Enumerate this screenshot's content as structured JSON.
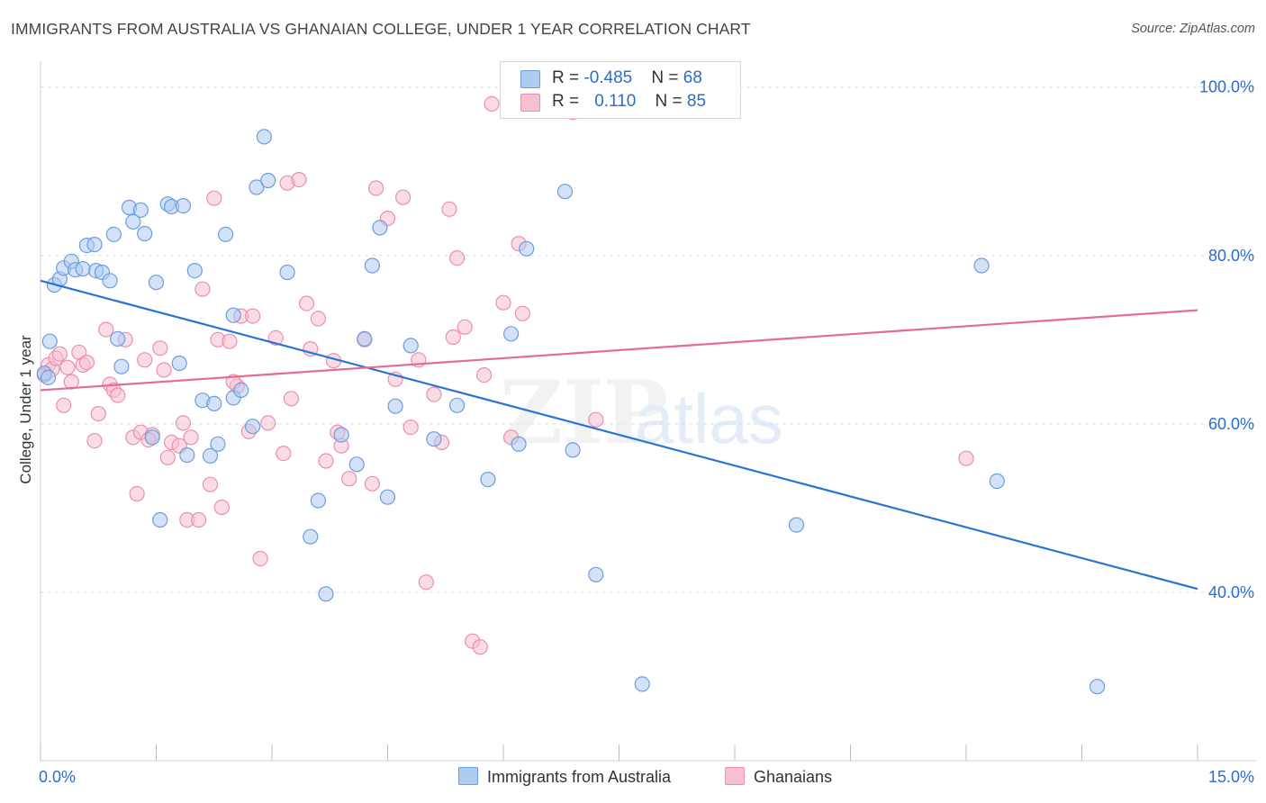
{
  "title": "IMMIGRANTS FROM AUSTRALIA VS GHANAIAN COLLEGE, UNDER 1 YEAR CORRELATION CHART",
  "source": "Source: ZipAtlas.com",
  "watermark": {
    "zip": "ZIP",
    "atlas": "atlas"
  },
  "legend": {
    "series1": {
      "r_label": "R = ",
      "r_value": "-0.485",
      "n_label": "N = ",
      "n_value": "68"
    },
    "series2": {
      "r_label": "R = ",
      "r_value": "0.110",
      "n_label": "N = ",
      "n_value": "85"
    }
  },
  "bottom_legend": {
    "series1": "Immigrants from Australia",
    "series2": "Ghanaians"
  },
  "colors": {
    "blue_fill": "#aecbf0",
    "blue_stroke": "#6d9de0",
    "blue_line": "#2b74d1",
    "pink_fill": "#f6c0d2",
    "pink_stroke": "#ec8fae",
    "pink_line": "#e36b96",
    "axis_label": "#2a6dd0",
    "grid": "#dddddd"
  },
  "chart_data": {
    "type": "scatter",
    "title": "IMMIGRANTS FROM AUSTRALIA VS GHANAIAN COLLEGE, UNDER 1 YEAR CORRELATION CHART",
    "xlabel": "",
    "ylabel": "College, Under 1 year",
    "xlim": [
      0,
      15
    ],
    "ylim": [
      20,
      102
    ],
    "x_tick_labels": [
      "0.0%",
      "15.0%"
    ],
    "y_ticks": [
      40,
      60,
      80,
      100
    ],
    "y_tick_labels": [
      "40.0%",
      "60.0%",
      "80.0%",
      "100.0%"
    ],
    "grid": true,
    "legend_position": "top-center",
    "series": [
      {
        "name": "Immigrants from Australia",
        "color": "#aecbf0",
        "trend": {
          "x": [
            0,
            15
          ],
          "y": [
            77.0,
            40.4
          ]
        },
        "points": [
          [
            0.05,
            66.0
          ],
          [
            0.12,
            69.8
          ],
          [
            0.18,
            76.5
          ],
          [
            0.25,
            77.2
          ],
          [
            0.3,
            78.5
          ],
          [
            0.4,
            79.3
          ],
          [
            0.45,
            78.3
          ],
          [
            0.55,
            78.4
          ],
          [
            0.6,
            81.2
          ],
          [
            0.7,
            81.3
          ],
          [
            0.72,
            78.2
          ],
          [
            0.8,
            78.0
          ],
          [
            0.9,
            77.0
          ],
          [
            0.95,
            82.5
          ],
          [
            1.0,
            70.1
          ],
          [
            1.05,
            66.8
          ],
          [
            1.15,
            85.7
          ],
          [
            1.2,
            84.0
          ],
          [
            1.3,
            85.4
          ],
          [
            1.35,
            82.6
          ],
          [
            1.45,
            58.4
          ],
          [
            1.5,
            76.8
          ],
          [
            1.55,
            48.6
          ],
          [
            1.65,
            86.1
          ],
          [
            1.7,
            85.8
          ],
          [
            1.8,
            67.2
          ],
          [
            1.85,
            85.9
          ],
          [
            1.9,
            56.3
          ],
          [
            2.0,
            78.2
          ],
          [
            2.1,
            62.8
          ],
          [
            2.2,
            56.2
          ],
          [
            2.25,
            62.4
          ],
          [
            2.3,
            57.6
          ],
          [
            2.4,
            82.5
          ],
          [
            2.5,
            72.9
          ],
          [
            2.5,
            63.1
          ],
          [
            2.6,
            64.0
          ],
          [
            2.75,
            59.7
          ],
          [
            2.8,
            88.1
          ],
          [
            2.9,
            94.1
          ],
          [
            2.95,
            88.9
          ],
          [
            3.2,
            78.0
          ],
          [
            3.5,
            46.6
          ],
          [
            3.6,
            50.9
          ],
          [
            3.7,
            39.8
          ],
          [
            3.9,
            58.7
          ],
          [
            4.1,
            55.2
          ],
          [
            4.2,
            70.1
          ],
          [
            4.3,
            78.8
          ],
          [
            4.4,
            83.3
          ],
          [
            4.5,
            51.3
          ],
          [
            4.6,
            62.1
          ],
          [
            4.8,
            69.3
          ],
          [
            5.1,
            58.2
          ],
          [
            5.4,
            62.2
          ],
          [
            5.8,
            53.4
          ],
          [
            6.1,
            70.7
          ],
          [
            6.2,
            57.6
          ],
          [
            6.3,
            80.8
          ],
          [
            6.8,
            87.6
          ],
          [
            6.9,
            56.9
          ],
          [
            7.2,
            42.1
          ],
          [
            7.8,
            29.1
          ],
          [
            9.8,
            48.0
          ],
          [
            12.2,
            78.8
          ],
          [
            12.4,
            53.2
          ],
          [
            13.7,
            28.8
          ],
          [
            0.1,
            65.5
          ]
        ]
      },
      {
        "name": "Ghanaians",
        "color": "#f6c0d2",
        "trend": {
          "x": [
            0,
            15
          ],
          "y": [
            64.0,
            73.5
          ]
        },
        "points": [
          [
            0.05,
            65.8
          ],
          [
            0.1,
            67.0
          ],
          [
            0.15,
            66.5
          ],
          [
            0.2,
            67.8
          ],
          [
            0.25,
            68.3
          ],
          [
            0.3,
            62.2
          ],
          [
            0.4,
            65.0
          ],
          [
            0.5,
            68.5
          ],
          [
            0.55,
            67.0
          ],
          [
            0.6,
            67.3
          ],
          [
            0.7,
            58.0
          ],
          [
            0.75,
            61.2
          ],
          [
            0.85,
            71.2
          ],
          [
            0.9,
            64.7
          ],
          [
            0.95,
            64.0
          ],
          [
            1.0,
            63.4
          ],
          [
            1.1,
            70.0
          ],
          [
            1.2,
            58.4
          ],
          [
            1.25,
            51.7
          ],
          [
            1.3,
            59.0
          ],
          [
            1.35,
            67.6
          ],
          [
            1.45,
            58.7
          ],
          [
            1.55,
            69.0
          ],
          [
            1.6,
            66.4
          ],
          [
            1.65,
            56.0
          ],
          [
            1.7,
            57.8
          ],
          [
            1.8,
            57.4
          ],
          [
            1.85,
            60.1
          ],
          [
            1.9,
            48.6
          ],
          [
            1.95,
            58.4
          ],
          [
            2.05,
            48.6
          ],
          [
            2.1,
            76.0
          ],
          [
            2.2,
            52.8
          ],
          [
            2.25,
            86.8
          ],
          [
            2.3,
            70.0
          ],
          [
            2.35,
            50.1
          ],
          [
            2.45,
            69.8
          ],
          [
            2.55,
            64.5
          ],
          [
            2.6,
            72.8
          ],
          [
            2.7,
            59.1
          ],
          [
            2.75,
            72.8
          ],
          [
            2.85,
            44.0
          ],
          [
            2.95,
            60.1
          ],
          [
            3.05,
            70.2
          ],
          [
            3.15,
            56.5
          ],
          [
            3.2,
            88.6
          ],
          [
            3.35,
            89.0
          ],
          [
            3.45,
            74.3
          ],
          [
            3.5,
            68.9
          ],
          [
            3.6,
            72.5
          ],
          [
            3.7,
            55.6
          ],
          [
            3.8,
            67.5
          ],
          [
            3.85,
            59.0
          ],
          [
            3.9,
            57.4
          ],
          [
            4.0,
            53.5
          ],
          [
            4.2,
            70.0
          ],
          [
            4.3,
            52.9
          ],
          [
            4.35,
            88.0
          ],
          [
            4.5,
            84.4
          ],
          [
            4.6,
            65.3
          ],
          [
            4.7,
            86.9
          ],
          [
            4.8,
            59.6
          ],
          [
            4.9,
            67.6
          ],
          [
            5.0,
            41.2
          ],
          [
            5.1,
            63.5
          ],
          [
            5.2,
            57.8
          ],
          [
            5.3,
            85.5
          ],
          [
            5.35,
            70.3
          ],
          [
            5.4,
            79.7
          ],
          [
            5.5,
            71.5
          ],
          [
            5.6,
            34.2
          ],
          [
            5.7,
            33.5
          ],
          [
            5.75,
            65.8
          ],
          [
            5.85,
            98.0
          ],
          [
            6.0,
            74.4
          ],
          [
            6.1,
            58.4
          ],
          [
            6.2,
            81.4
          ],
          [
            6.25,
            73.1
          ],
          [
            6.9,
            97.0
          ],
          [
            7.2,
            60.5
          ],
          [
            12.0,
            55.9
          ],
          [
            0.35,
            66.7
          ],
          [
            1.4,
            58.1
          ],
          [
            2.5,
            65.0
          ],
          [
            3.25,
            63.0
          ]
        ]
      }
    ]
  }
}
